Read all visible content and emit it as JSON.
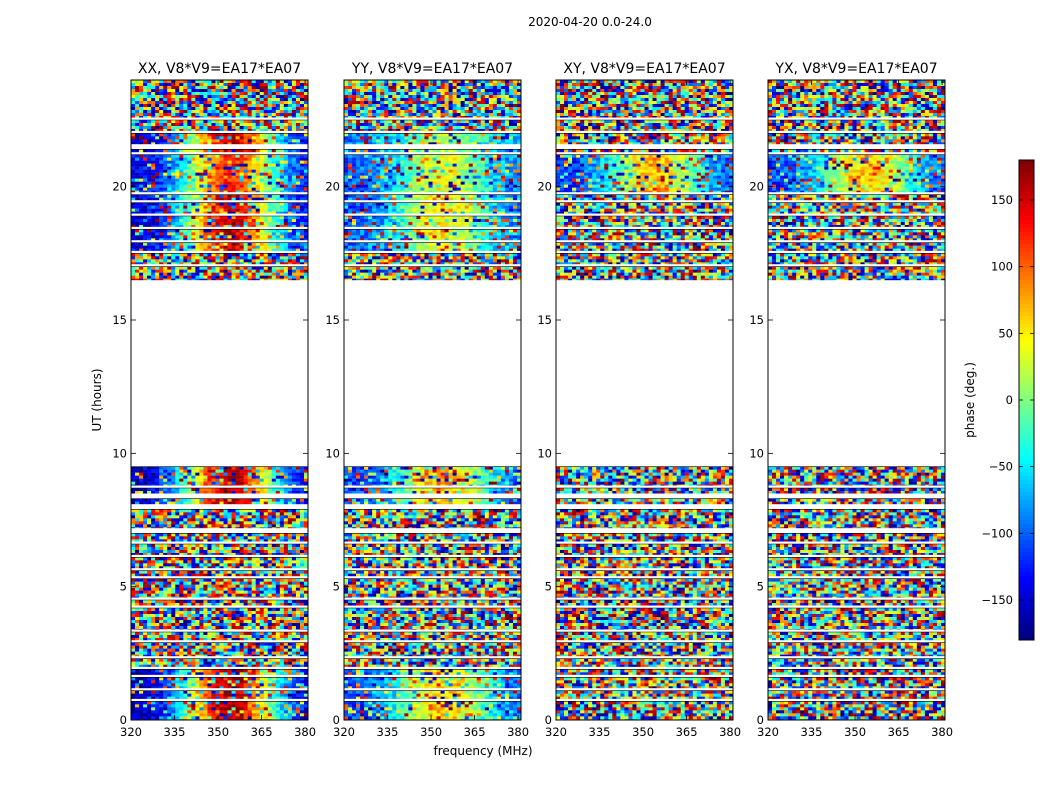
{
  "figure_title": "2020-04-20 0.0-24.0",
  "chart_data": {
    "type": "heatmap",
    "title": "2020-04-20 0.0-24.0",
    "xlabel": "frequency (MHz)",
    "ylabel": "UT (hours)",
    "xlim": [
      320,
      381
    ],
    "ylim": [
      0,
      24
    ],
    "xticks": [
      320,
      335,
      350,
      365,
      380
    ],
    "yticks": [
      0,
      5,
      10,
      15,
      20
    ],
    "panels": [
      {
        "title": "XX, V8*V9=EA17*EA07",
        "pol": "XX"
      },
      {
        "title": "YY, V8*V9=EA17*EA07",
        "pol": "YY"
      },
      {
        "title": "XY, V8*V9=EA17*EA07",
        "pol": "XY"
      },
      {
        "title": "YX, V8*V9=EA17*EA07",
        "pol": "YX"
      }
    ],
    "colorbar": {
      "label": "phase (deg.)",
      "range": [
        -180,
        180
      ],
      "ticks": [
        150,
        100,
        50,
        0,
        -50,
        -100,
        -150
      ],
      "tick_labels": [
        "150",
        "100",
        "50",
        "0",
        "−50",
        "−100",
        "−150"
      ],
      "colormap": "jet"
    },
    "data_segments_ut_hours": [
      [
        0.0,
        0.7
      ],
      [
        0.8,
        1.1
      ],
      [
        1.2,
        1.6
      ],
      [
        1.7,
        1.9
      ],
      [
        2.0,
        2.3
      ],
      [
        2.4,
        2.9
      ],
      [
        3.0,
        3.3
      ],
      [
        3.4,
        4.2
      ],
      [
        4.3,
        4.5
      ],
      [
        4.6,
        5.3
      ],
      [
        5.4,
        5.6
      ],
      [
        5.7,
        6.1
      ],
      [
        6.2,
        6.6
      ],
      [
        6.7,
        7.0
      ],
      [
        7.2,
        7.9
      ],
      [
        8.1,
        8.3
      ],
      [
        8.5,
        8.7
      ],
      [
        8.8,
        9.5
      ],
      [
        16.5,
        17.0
      ],
      [
        17.1,
        17.5
      ],
      [
        17.6,
        17.9
      ],
      [
        18.0,
        18.4
      ],
      [
        18.5,
        18.9
      ],
      [
        19.0,
        19.4
      ],
      [
        19.5,
        19.7
      ],
      [
        19.8,
        21.2
      ],
      [
        21.3,
        21.4
      ],
      [
        21.6,
        22.0
      ],
      [
        22.1,
        22.5
      ],
      [
        22.6,
        24.0
      ]
    ],
    "flagged_gap_ut_hours": [
      9.5,
      16.5
    ]
  }
}
